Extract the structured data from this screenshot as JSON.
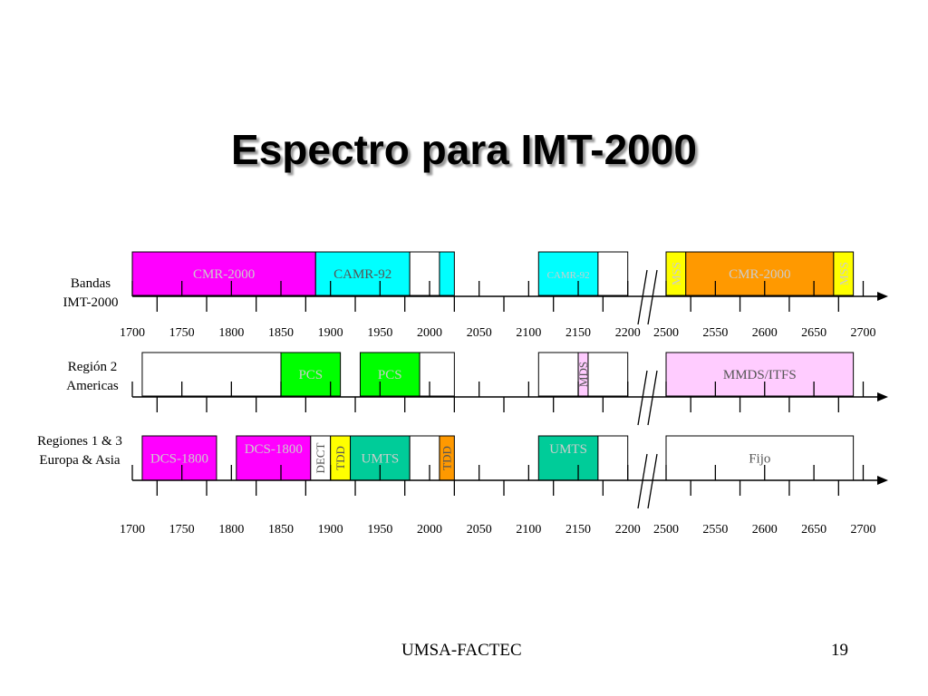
{
  "title": "Espectro para IMT-2000",
  "footer": {
    "source": "UMSA-FACTEC",
    "page": "19"
  },
  "colors": {
    "magenta": "#ff00ff",
    "cyan": "#00ffff",
    "orange": "#ff9900",
    "yellow": "#ffff00",
    "green": "#00ff00",
    "teal": "#00cc99",
    "pink": "#ffccff",
    "white": "#ffffff",
    "dim_text": "#cccccc",
    "dark_text": "#555555"
  },
  "rows": [
    {
      "id": "imt2000",
      "label_lines": [
        "Bandas",
        "IMT-2000"
      ],
      "blocks": [
        {
          "from": 1700,
          "to": 1885,
          "label": "CMR-2000",
          "color": "magenta",
          "text_color": "dim_text"
        },
        {
          "from": 1885,
          "to": 1980,
          "label": "CAMR-92",
          "color": "cyan",
          "text_color": "dark_text"
        },
        {
          "from": 1980,
          "to": 2010,
          "label": "",
          "color": "white"
        },
        {
          "from": 2010,
          "to": 2025,
          "label": "",
          "color": "cyan"
        },
        {
          "from": 2110,
          "to": 2170,
          "label": "CAMR-92",
          "color": "cyan",
          "text_color": "dim_text",
          "small": true
        },
        {
          "from": 2170,
          "to": 2200,
          "label": "",
          "color": "white"
        },
        {
          "from": 2500,
          "to": 2520,
          "label": "MSS",
          "color": "yellow",
          "text_color": "dim_text",
          "vertical": true
        },
        {
          "from": 2520,
          "to": 2670,
          "label": "CMR-2000",
          "color": "orange",
          "text_color": "dim_text"
        },
        {
          "from": 2670,
          "to": 2690,
          "label": "MSS",
          "color": "yellow",
          "text_color": "dim_text",
          "vertical": true
        }
      ]
    },
    {
      "id": "region2",
      "label_lines": [
        "Región 2",
        "Americas"
      ],
      "blocks": [
        {
          "from": 1710,
          "to": 1850,
          "label": "",
          "color": "white"
        },
        {
          "from": 1850,
          "to": 1910,
          "label": "PCS",
          "color": "green",
          "text_color": "dim_text"
        },
        {
          "from": 1930,
          "to": 1990,
          "label": "PCS",
          "color": "green",
          "text_color": "dim_text"
        },
        {
          "from": 1990,
          "to": 2025,
          "label": "",
          "color": "white"
        },
        {
          "from": 2110,
          "to": 2150,
          "label": "",
          "color": "white"
        },
        {
          "from": 2150,
          "to": 2160,
          "label": "MDS",
          "color": "pink",
          "text_color": "dark_text",
          "vertical": true
        },
        {
          "from": 2160,
          "to": 2200,
          "label": "",
          "color": "white"
        },
        {
          "from": 2500,
          "to": 2690,
          "label": "MMDS/ITFS",
          "color": "pink",
          "text_color": "dark_text"
        }
      ]
    },
    {
      "id": "region13",
      "label_lines": [
        "Regiones 1 & 3",
        "Europa & Asia"
      ],
      "blocks": [
        {
          "from": 1710,
          "to": 1785,
          "label": "DCS-1800",
          "color": "magenta",
          "text_color": "dim_text"
        },
        {
          "from": 1805,
          "to": 1880,
          "label": "DCS-1800",
          "color": "magenta",
          "text_color": "dim_text",
          "align_top": true
        },
        {
          "from": 1880,
          "to": 1900,
          "label": "DECT",
          "color": "white",
          "text_color": "dark_text",
          "vertical": true
        },
        {
          "from": 1900,
          "to": 1920,
          "label": "TDD",
          "color": "yellow",
          "text_color": "dark_text",
          "vertical": true
        },
        {
          "from": 1920,
          "to": 1980,
          "label": "UMTS",
          "color": "teal",
          "text_color": "dim_text"
        },
        {
          "from": 1980,
          "to": 2010,
          "label": "",
          "color": "white"
        },
        {
          "from": 2010,
          "to": 2025,
          "label": "TDD",
          "color": "orange",
          "text_color": "dark_text",
          "vertical": true
        },
        {
          "from": 2110,
          "to": 2170,
          "label": "UMTS",
          "color": "teal",
          "text_color": "dim_text",
          "align_top": true
        },
        {
          "from": 2170,
          "to": 2200,
          "label": "",
          "color": "white"
        },
        {
          "from": 2500,
          "to": 2690,
          "label": "Fijo",
          "color": "white",
          "text_color": "dark_text"
        }
      ]
    }
  ],
  "axis_labels": {
    "upper": [
      "1700",
      "1750",
      "1800",
      "1850",
      "1900",
      "1950",
      "2000",
      "2050",
      "2100",
      "2150",
      "2200",
      "2500",
      "2550",
      "2600",
      "2650",
      "2700"
    ],
    "lower": [
      "1700",
      "1750",
      "1800",
      "1850",
      "1900",
      "1950",
      "2000",
      "2050",
      "2100",
      "2150",
      "2200",
      "2500",
      "2550",
      "2600",
      "2650",
      "2700"
    ]
  }
}
